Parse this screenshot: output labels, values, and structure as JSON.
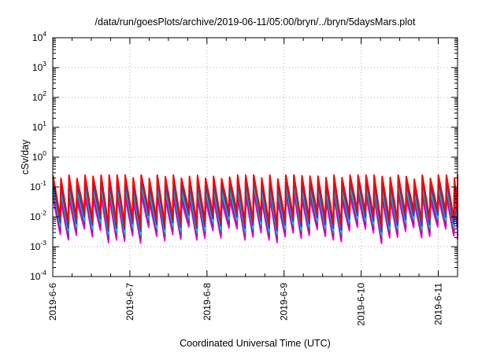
{
  "chart_data": {
    "type": "line",
    "title": "/data/run/goesPlots/archive/2019-06-11/05:00/bryn/../bryn/5daysMars.plot",
    "xlabel": "Coordinated Universal Time (UTC)",
    "ylabel": "cSv/day",
    "x_scale": "time",
    "y_scale": "log",
    "xlim": [
      "2019-06-06T00:00",
      "2019-06-11T06:00"
    ],
    "ylim": [
      0.0001,
      10000
    ],
    "x_ticks": [
      "2019-6-6",
      "2019-6-7",
      "2019-6-8",
      "2019-6-9",
      "2019-6-10",
      "2019-6-11"
    ],
    "y_ticks": [
      {
        "base": "10",
        "exp": "-4"
      },
      {
        "base": "10",
        "exp": "-3"
      },
      {
        "base": "10",
        "exp": "-2"
      },
      {
        "base": "10",
        "exp": "-1"
      },
      {
        "base": "10",
        "exp": "0"
      },
      {
        "base": "10",
        "exp": "1"
      },
      {
        "base": "10",
        "exp": "2"
      },
      {
        "base": "10",
        "exp": "3"
      },
      {
        "base": "10",
        "exp": "4"
      }
    ],
    "grid": true,
    "legend": "none",
    "series_colors": [
      "#ff00ff",
      "#cc00cc",
      "#cc0055",
      "#00a0a0",
      "#00c8ff",
      "#1a4dcc",
      "#444488",
      "#ff0000"
    ],
    "sawtooth": {
      "approx_period_hours": 2.5,
      "peak_value_range": [
        0.05,
        0.2
      ],
      "trough_value_range": [
        0.0015,
        0.01
      ]
    }
  }
}
